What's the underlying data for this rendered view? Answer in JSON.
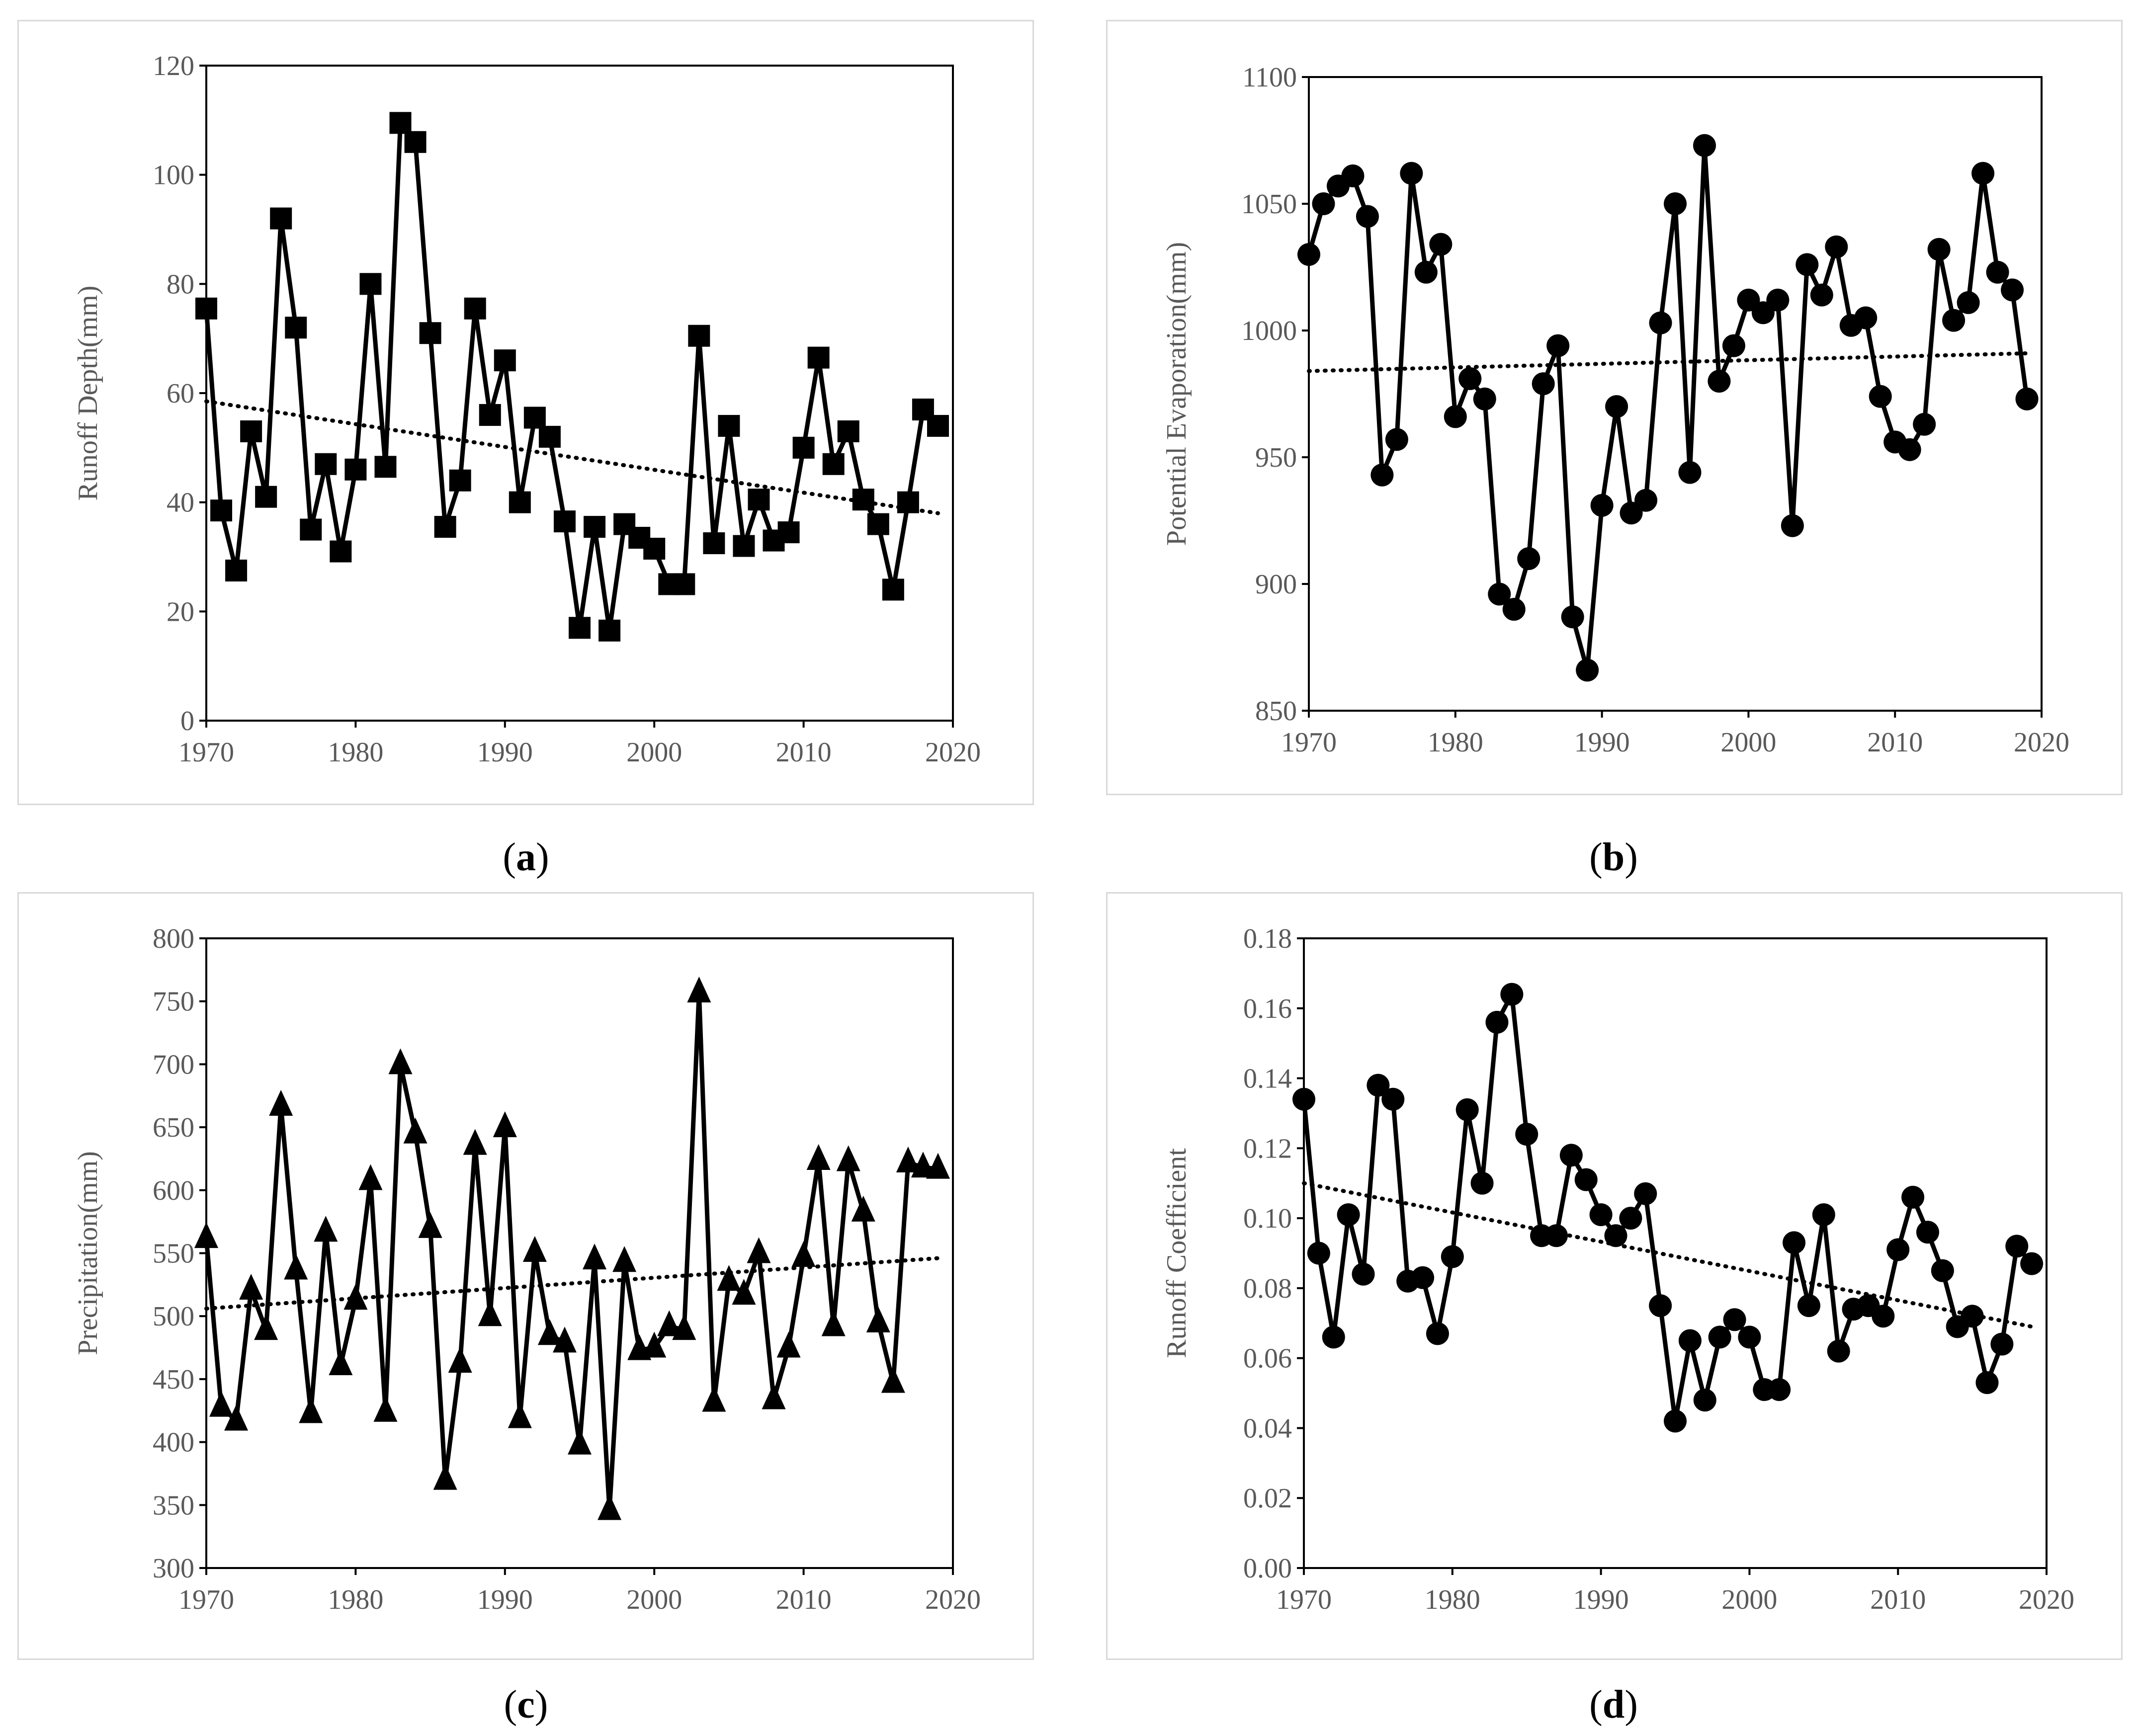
{
  "chart_data": [
    {
      "id": "a",
      "type": "line",
      "caption": "a",
      "ylabel": "Runoff Depth(mm)",
      "xlim": [
        1970,
        2020
      ],
      "ylim": [
        0,
        120
      ],
      "xticks": [
        1970,
        1980,
        1990,
        2000,
        2010,
        2020
      ],
      "yticks": [
        0,
        20,
        40,
        60,
        80,
        100,
        120
      ],
      "decimals": 0,
      "marker": "square",
      "trendline": [
        58.5,
        38.0
      ],
      "series": [
        {
          "name": "Runoff Depth",
          "x": [
            1970,
            1971,
            1972,
            1973,
            1974,
            1975,
            1976,
            1977,
            1978,
            1979,
            1980,
            1981,
            1982,
            1983,
            1984,
            1985,
            1986,
            1987,
            1988,
            1989,
            1990,
            1991,
            1992,
            1993,
            1994,
            1995,
            1996,
            1997,
            1998,
            1999,
            2000,
            2001,
            2002,
            2003,
            2004,
            2005,
            2006,
            2007,
            2008,
            2009,
            2010,
            2011,
            2012,
            2013,
            2014,
            2015,
            2016,
            2017,
            2018,
            2019
          ],
          "values": [
            75.5,
            38.5,
            27.5,
            53,
            41,
            92,
            72,
            35,
            47,
            31,
            46,
            80,
            46.5,
            109.5,
            106,
            71,
            35.5,
            44,
            75.5,
            56,
            66,
            40,
            55.5,
            52,
            36.5,
            17,
            35.5,
            16.5,
            36,
            33.5,
            31.5,
            25,
            25,
            70.5,
            32.5,
            54,
            32,
            40.5,
            33,
            34.5,
            50,
            66.5,
            47,
            53,
            40.5,
            36,
            24,
            40,
            57,
            54
          ]
        }
      ]
    },
    {
      "id": "b",
      "type": "line",
      "caption": "b",
      "ylabel": "Potential Evaporation(mm)",
      "xlim": [
        1970,
        2020
      ],
      "ylim": [
        850,
        1100
      ],
      "xticks": [
        1970,
        1980,
        1990,
        2000,
        2010,
        2020
      ],
      "yticks": [
        850,
        900,
        950,
        1000,
        1050,
        1100
      ],
      "decimals": 0,
      "marker": "circle",
      "trendline": [
        984,
        991
      ],
      "series": [
        {
          "name": "Potential Evaporation",
          "x": [
            1970,
            1971,
            1972,
            1973,
            1974,
            1975,
            1976,
            1977,
            1978,
            1979,
            1980,
            1981,
            1982,
            1983,
            1984,
            1985,
            1986,
            1987,
            1988,
            1989,
            1990,
            1991,
            1992,
            1993,
            1994,
            1995,
            1996,
            1997,
            1998,
            1999,
            2000,
            2001,
            2002,
            2003,
            2004,
            2005,
            2006,
            2007,
            2008,
            2009,
            2010,
            2011,
            2012,
            2013,
            2014,
            2015,
            2016,
            2017,
            2018,
            2019
          ],
          "values": [
            1030,
            1050,
            1057,
            1061,
            1045,
            943,
            957,
            1062,
            1023,
            1034,
            966,
            981,
            973,
            896,
            890,
            910,
            979,
            994,
            887,
            866,
            931,
            970,
            928,
            933,
            1003,
            1050,
            944,
            1073,
            980,
            994,
            1012,
            1007,
            1012,
            923,
            1026,
            1014,
            1033,
            1002,
            1005,
            974,
            956,
            953,
            963,
            1032,
            1004,
            1011,
            1062,
            1023,
            1016,
            973
          ]
        }
      ]
    },
    {
      "id": "c",
      "type": "line",
      "caption": "c",
      "ylabel": "Precipitation(mm)",
      "xlim": [
        1970,
        2020
      ],
      "ylim": [
        300,
        800
      ],
      "xticks": [
        1970,
        1980,
        1990,
        2000,
        2010,
        2020
      ],
      "yticks": [
        300,
        350,
        400,
        450,
        500,
        550,
        600,
        650,
        700,
        750,
        800
      ],
      "decimals": 0,
      "marker": "triangle",
      "trendline": [
        506,
        546
      ],
      "series": [
        {
          "name": "Precipitation",
          "x": [
            1970,
            1971,
            1972,
            1973,
            1974,
            1975,
            1976,
            1977,
            1978,
            1979,
            1980,
            1981,
            1982,
            1983,
            1984,
            1985,
            1986,
            1987,
            1988,
            1989,
            1990,
            1991,
            1992,
            1993,
            1994,
            1995,
            1996,
            1997,
            1998,
            1999,
            2000,
            2001,
            2002,
            2003,
            2004,
            2005,
            2006,
            2007,
            2008,
            2009,
            2010,
            2011,
            2012,
            2013,
            2014,
            2015,
            2016,
            2017,
            2018,
            2019
          ],
          "values": [
            562,
            428,
            417,
            521,
            489,
            667,
            537,
            423,
            567,
            461,
            513,
            608,
            424,
            700,
            645,
            570,
            370,
            463,
            636,
            500,
            650,
            419,
            551,
            485,
            479,
            398,
            545,
            346,
            543,
            473,
            475,
            492,
            489,
            757,
            432,
            528,
            517,
            550,
            434,
            475,
            547,
            624,
            492,
            623,
            583,
            495,
            447,
            622,
            618,
            617
          ]
        }
      ]
    },
    {
      "id": "d",
      "type": "line",
      "caption": "d",
      "ylabel": "Runoff Coefficient",
      "xlim": [
        1970,
        2020
      ],
      "ylim": [
        0,
        0.18
      ],
      "xticks": [
        1970,
        1980,
        1990,
        2000,
        2010,
        2020
      ],
      "yticks": [
        0,
        0.02,
        0.04,
        0.06,
        0.08,
        0.1,
        0.12,
        0.14,
        0.16,
        0.18
      ],
      "decimals": 2,
      "marker": "circle",
      "trendline": [
        0.11,
        0.069
      ],
      "series": [
        {
          "name": "Runoff Coefficient",
          "x": [
            1970,
            1971,
            1972,
            1973,
            1974,
            1975,
            1976,
            1977,
            1978,
            1979,
            1980,
            1981,
            1982,
            1983,
            1984,
            1985,
            1986,
            1987,
            1988,
            1989,
            1990,
            1991,
            1992,
            1993,
            1994,
            1995,
            1996,
            1997,
            1998,
            1999,
            2000,
            2001,
            2002,
            2003,
            2004,
            2005,
            2006,
            2007,
            2008,
            2009,
            2010,
            2011,
            2012,
            2013,
            2014,
            2015,
            2016,
            2017,
            2018,
            2019
          ],
          "values": [
            0.134,
            0.09,
            0.066,
            0.101,
            0.084,
            0.138,
            0.134,
            0.082,
            0.083,
            0.067,
            0.089,
            0.131,
            0.11,
            0.156,
            0.164,
            0.124,
            0.095,
            0.095,
            0.118,
            0.111,
            0.101,
            0.095,
            0.1,
            0.107,
            0.075,
            0.042,
            0.065,
            0.048,
            0.066,
            0.071,
            0.066,
            0.051,
            0.051,
            0.093,
            0.075,
            0.101,
            0.062,
            0.074,
            0.075,
            0.072,
            0.091,
            0.106,
            0.096,
            0.085,
            0.069,
            0.072,
            0.053,
            0.064,
            0.092,
            0.087
          ]
        }
      ]
    }
  ]
}
